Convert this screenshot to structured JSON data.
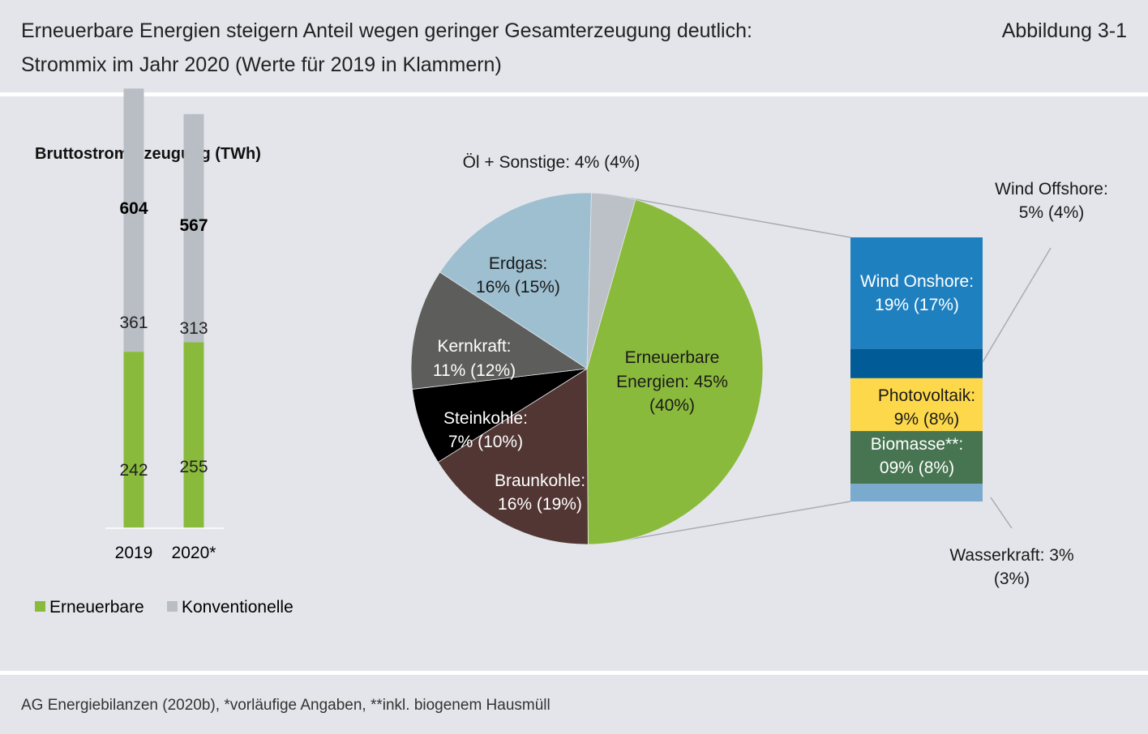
{
  "header": {
    "title_line1": "Erneuerbare Energien steigern Anteil wegen geringer Gesamterzeugung deutlich:",
    "title_line2": "Strommix im Jahr 2020 (Werte für 2019 in Klammern)",
    "figure_label": "Abbildung 3-1"
  },
  "footer": {
    "source": "AG Energiebilanzen (2020b), *vorläufige Angaben, **inkl. biogenem Hausmüll"
  },
  "colors": {
    "renewable_green": "#8aba3c",
    "conventional_gray": "#b9bec5",
    "oel": "#bcc1c8",
    "erdgas": "#9dbfd0",
    "kernkraft": "#5d5d5b",
    "steinkohle": "#000000",
    "braunkohle": "#513634",
    "wind_onshore": "#1f80c0",
    "wind_offshore": "#005b96",
    "photovoltaik": "#fdd84a",
    "biomasse": "#477551",
    "wasserkraft": "#7aaacd"
  },
  "chart_data": [
    {
      "type": "bar",
      "title": "Bruttostromerzeugung (TWh)",
      "categories": [
        "2019",
        "2020*"
      ],
      "totals": [
        "604",
        "567"
      ],
      "series": [
        {
          "name": "Erneuerbare",
          "values": [
            242,
            255
          ],
          "color": "#8aba3c"
        },
        {
          "name": "Konventionelle",
          "values": [
            361,
            313
          ],
          "color": "#b9bec5"
        }
      ],
      "legend_position": "bottom-left"
    },
    {
      "type": "pie",
      "slices": [
        {
          "label_line1": "Erneuerbare",
          "label_line2": "Energien: 45%",
          "label_line3": "(40%)",
          "value": 45,
          "color": "#8aba3c"
        },
        {
          "label_line1": "Braunkohle:",
          "label_line2": "16% (19%)",
          "value": 16,
          "color": "#513634"
        },
        {
          "label_line1": "Steinkohle:",
          "label_line2": "7% (10%)",
          "value": 7,
          "color": "#000000"
        },
        {
          "label_line1": "Kernkraft:",
          "label_line2": "11% (12%)",
          "value": 11,
          "color": "#5d5d5b"
        },
        {
          "label_line1": "Erdgas:",
          "label_line2": "16% (15%)",
          "value": 16,
          "color": "#9dbfd0"
        },
        {
          "label_line1": "Öl + Sonstige: 4% (4%)",
          "value": 4,
          "color": "#bcc1c8"
        }
      ]
    },
    {
      "type": "bar",
      "stacked": true,
      "parent": "Erneuerbare Energien",
      "segments": [
        {
          "label_line1": "Wind Onshore:",
          "label_line2": "19% (17%)",
          "value": 19,
          "color": "#1f80c0"
        },
        {
          "label_line1": "Wind Offshore:",
          "label_line2": "5% (4%)",
          "value": 5,
          "color": "#005b96"
        },
        {
          "label_line1": "Photovoltaik:",
          "label_line2": "9% (8%)",
          "value": 9,
          "color": "#fdd84a"
        },
        {
          "label_line1": "Biomasse**:",
          "label_line2": "09% (8%)",
          "value": 9,
          "color": "#477551"
        },
        {
          "label_line1": "Wasserkraft: 3%",
          "label_line2": "(3%)",
          "value": 3,
          "color": "#7aaacd"
        }
      ]
    }
  ]
}
